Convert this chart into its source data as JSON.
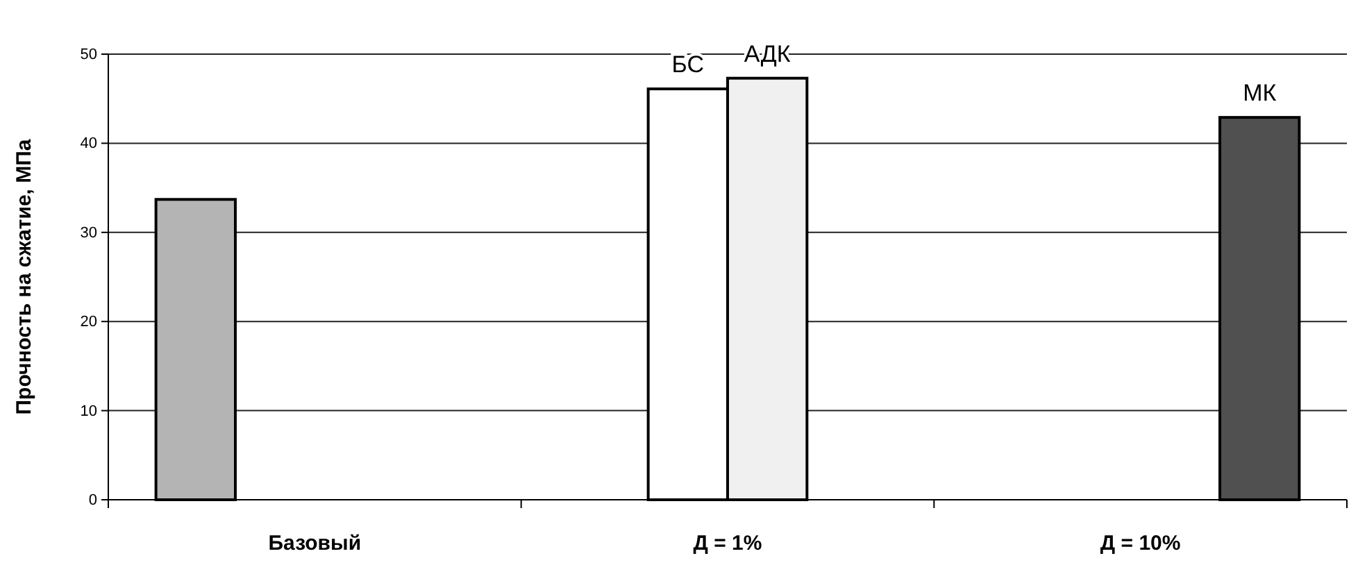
{
  "chart_data": {
    "type": "bar",
    "ylabel": "Прочность на сжатие, МПа",
    "categories": [
      "Базовый",
      "Д = 1%",
      "Д = 10%"
    ],
    "series": [
      {
        "color": "#b4b4b4",
        "values": [
          33.7,
          null,
          null
        ]
      },
      {
        "name": "БС",
        "color": "#ffffff",
        "values": [
          null,
          46.1,
          null
        ]
      },
      {
        "name": "АДК",
        "color": "#f0f0f0",
        "values": [
          null,
          47.3,
          null
        ]
      },
      {
        "name": "МК",
        "color": "#505050",
        "values": [
          null,
          null,
          42.9
        ]
      }
    ],
    "ylim": [
      0,
      50
    ],
    "yticks": [
      0,
      10,
      20,
      30,
      40,
      50
    ],
    "grid": "y"
  }
}
